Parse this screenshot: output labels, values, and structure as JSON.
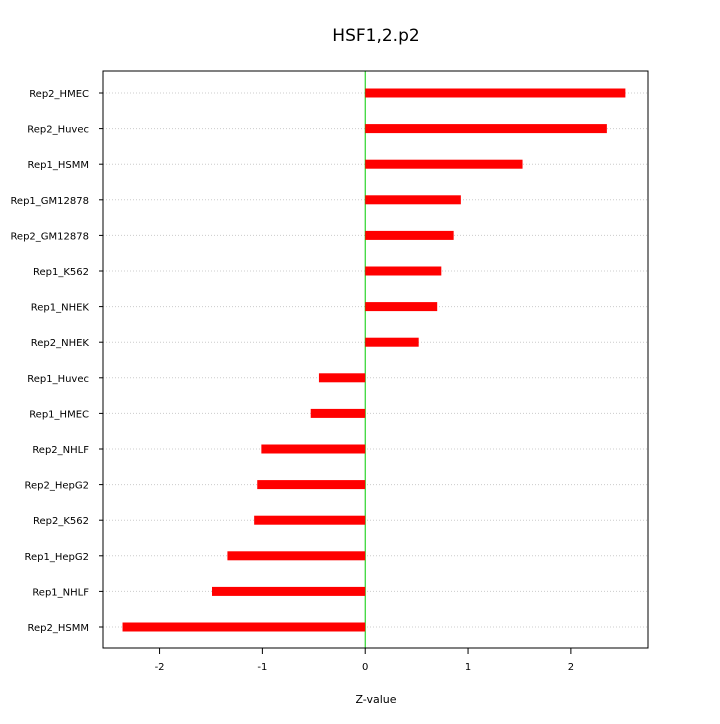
{
  "chart_data": {
    "type": "bar",
    "orientation": "horizontal",
    "title": "HSF1,2.p2",
    "xlabel": "Z-value",
    "ylabel": "",
    "xlim": [
      -2.55,
      2.75
    ],
    "xticks": [
      -2,
      -1,
      0,
      1,
      2
    ],
    "xtick_labels": [
      "-2",
      "-1",
      "0",
      "1",
      "2"
    ],
    "grid": "horizontal dotted lines at each category",
    "categories": [
      "Rep2_HMEC",
      "Rep2_Huvec",
      "Rep1_HSMM",
      "Rep1_GM12878",
      "Rep2_GM12878",
      "Rep1_K562",
      "Rep1_NHEK",
      "Rep2_NHEK",
      "Rep1_Huvec",
      "Rep1_HMEC",
      "Rep2_NHLF",
      "Rep2_HepG2",
      "Rep2_K562",
      "Rep1_HepG2",
      "Rep1_NHLF",
      "Rep2_HSMM"
    ],
    "values": [
      2.53,
      2.35,
      1.53,
      0.93,
      0.86,
      0.74,
      0.7,
      0.52,
      -0.45,
      -0.53,
      -1.01,
      -1.05,
      -1.08,
      -1.34,
      -1.49,
      -2.36
    ],
    "bar_color": "#ff0000",
    "zero_line_color": "#00cc00",
    "grid_color": "#cccccc"
  }
}
